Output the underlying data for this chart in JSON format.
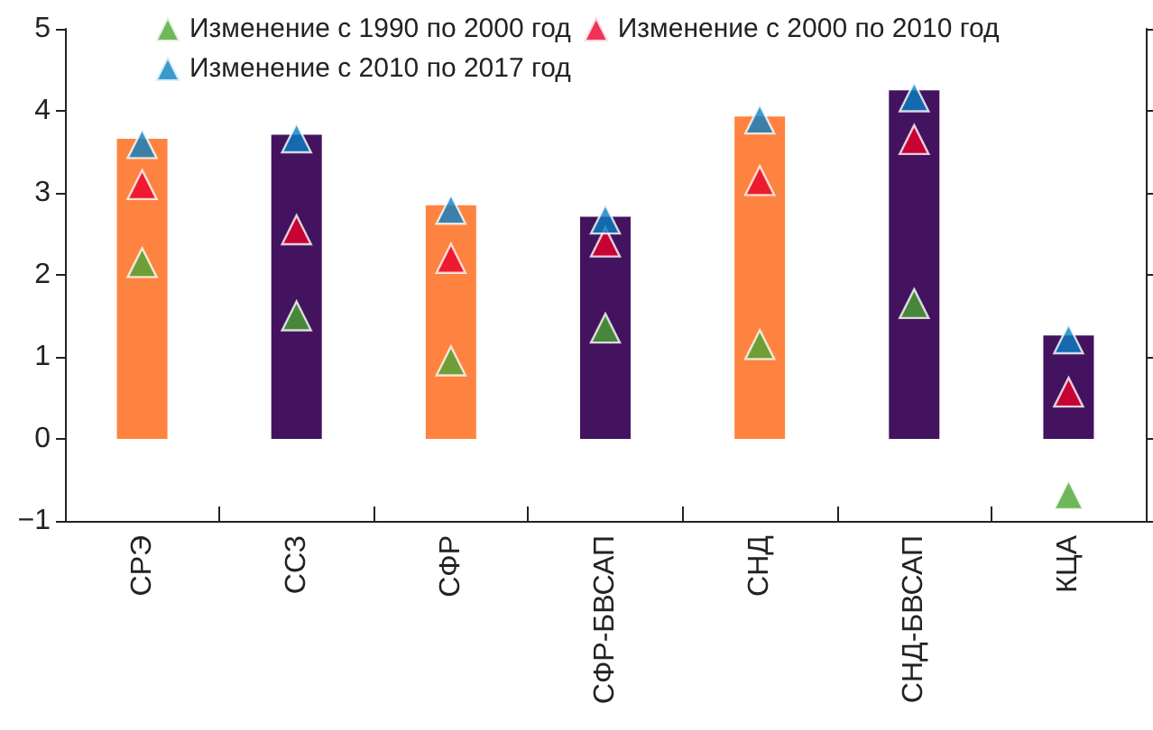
{
  "chart_data": {
    "type": "bar",
    "categories": [
      "СРЭ",
      "ССЗ",
      "СФР",
      "СФР-БВСАП",
      "СНД",
      "СНД-БВСАП",
      "КЦА"
    ],
    "series": [
      {
        "colors": [
          "#ff8340",
          "#43135f",
          "#ff8340",
          "#43135f",
          "#ff8340",
          "#43135f",
          "#43135f"
        ],
        "values": [
          3.66,
          3.71,
          2.85,
          2.71,
          3.93,
          4.25,
          1.26
        ]
      },
      {
        "type": "scatter",
        "name": "Изменение с 1990 по 2000 год",
        "color": "#4aa532",
        "values": [
          2.15,
          1.5,
          0.95,
          1.35,
          1.15,
          1.65,
          -0.68
        ]
      },
      {
        "type": "scatter",
        "name": "Изменение с 2000 по 2010 год",
        "color": "#e8002c",
        "values": [
          3.1,
          2.55,
          2.2,
          2.4,
          3.15,
          3.65,
          0.57
        ]
      },
      {
        "type": "scatter",
        "name": "Изменение с 2010 по 2017 год",
        "color": "#0a7fc2",
        "values": [
          3.6,
          3.67,
          2.8,
          2.68,
          3.9,
          4.17,
          1.22
        ]
      }
    ],
    "ylim": [
      -1,
      5
    ],
    "yticks": [
      -1,
      0,
      1,
      2,
      3,
      4,
      5
    ],
    "grid": false,
    "legend": "top left",
    "marker": "triangle"
  }
}
